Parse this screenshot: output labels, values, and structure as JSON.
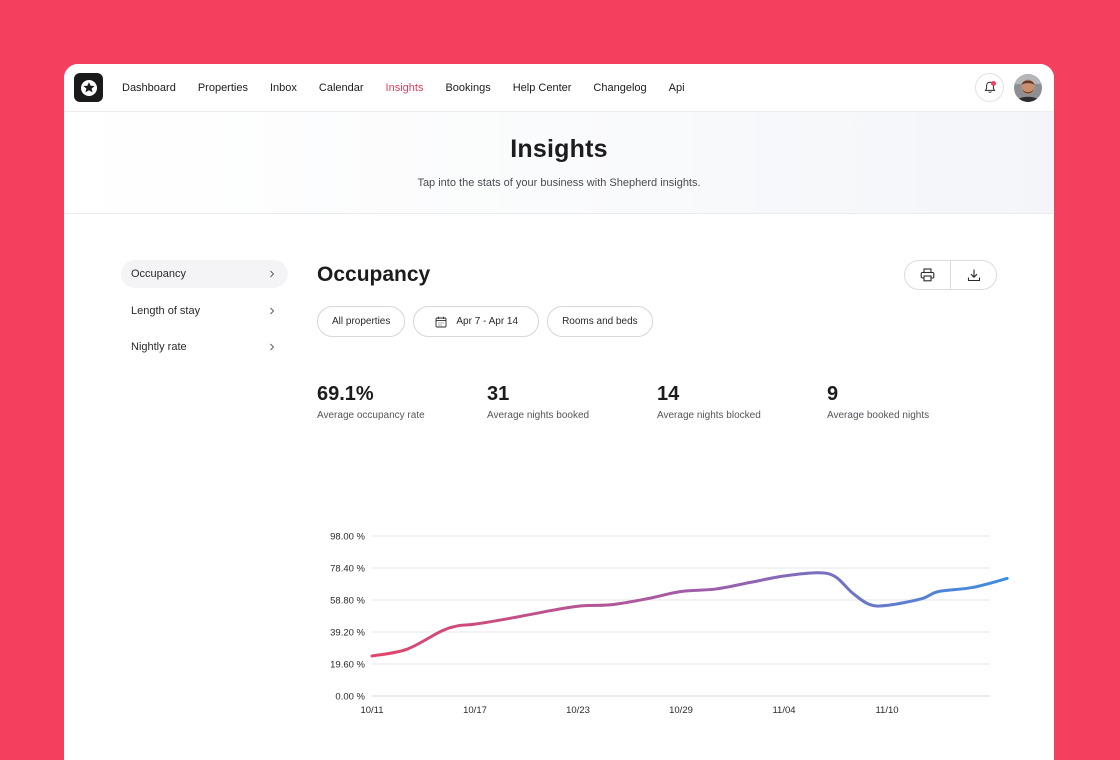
{
  "nav": {
    "items": [
      {
        "label": "Dashboard",
        "active": false
      },
      {
        "label": "Properties",
        "active": false
      },
      {
        "label": "Inbox",
        "active": false
      },
      {
        "label": "Calendar",
        "active": false
      },
      {
        "label": "Insights",
        "active": true
      },
      {
        "label": "Bookings",
        "active": false
      },
      {
        "label": "Help Center",
        "active": false
      },
      {
        "label": "Changelog",
        "active": false
      },
      {
        "label": "Api",
        "active": false
      }
    ],
    "notification_icon": "bell-icon",
    "has_unread": true
  },
  "hero": {
    "title": "Insights",
    "subtitle": "Tap into the stats of your business with Shepherd insights."
  },
  "sidebar": {
    "items": [
      {
        "label": "Occupancy",
        "active": true
      },
      {
        "label": "Length of stay",
        "active": false
      },
      {
        "label": "Nightly rate",
        "active": false
      }
    ]
  },
  "main": {
    "title": "Occupancy",
    "actions": {
      "print_icon": "printer-icon",
      "download_icon": "download-icon"
    },
    "filters": {
      "properties": "All properties",
      "date_range": "Apr 7 - Apr 14",
      "room_type": "Rooms and beds"
    },
    "stats": [
      {
        "value": "69.1%",
        "label": "Average occupancy rate"
      },
      {
        "value": "31",
        "label": "Average nights booked"
      },
      {
        "value": "14",
        "label": "Average nights blocked"
      },
      {
        "value": "9",
        "label": "Average booked nights"
      }
    ]
  },
  "colors": {
    "accent": "#e2405c",
    "background": "#f53f5e",
    "line_start": "#e0456a",
    "line_mid": "#9a5fae",
    "line_end": "#3b8ee0"
  },
  "chart_data": {
    "type": "line",
    "ylim": [
      0,
      98
    ],
    "y_ticks": [
      "98.00 %",
      "78.40 %",
      "58.80 %",
      "39.20 %",
      "19.60 %",
      "0.00 %"
    ],
    "y_tick_values": [
      98,
      78.4,
      58.8,
      39.2,
      19.6,
      0
    ],
    "x_tick_labels": [
      "10/11",
      "10/17",
      "10/23",
      "10/29",
      "11/04",
      "11/10"
    ],
    "x_tick_index": [
      0,
      6,
      12,
      18,
      24,
      30
    ],
    "x_count": 37,
    "grid": true,
    "series": [
      {
        "points": [
          [
            0,
            24.5
          ],
          [
            2,
            28.5
          ],
          [
            4,
            39.5
          ],
          [
            5,
            43
          ],
          [
            6,
            44
          ],
          [
            8,
            47.5
          ],
          [
            10,
            51.5
          ],
          [
            12,
            55
          ],
          [
            14,
            56
          ],
          [
            16,
            59.5
          ],
          [
            18,
            64
          ],
          [
            20,
            65.5
          ],
          [
            22,
            69.5
          ],
          [
            24,
            73.5
          ],
          [
            26,
            75.5
          ],
          [
            27,
            73
          ],
          [
            28,
            63
          ],
          [
            29,
            56
          ],
          [
            30,
            55.5
          ],
          [
            32,
            59.5
          ],
          [
            33,
            64
          ],
          [
            35,
            66.5
          ],
          [
            37,
            72
          ]
        ]
      }
    ]
  }
}
